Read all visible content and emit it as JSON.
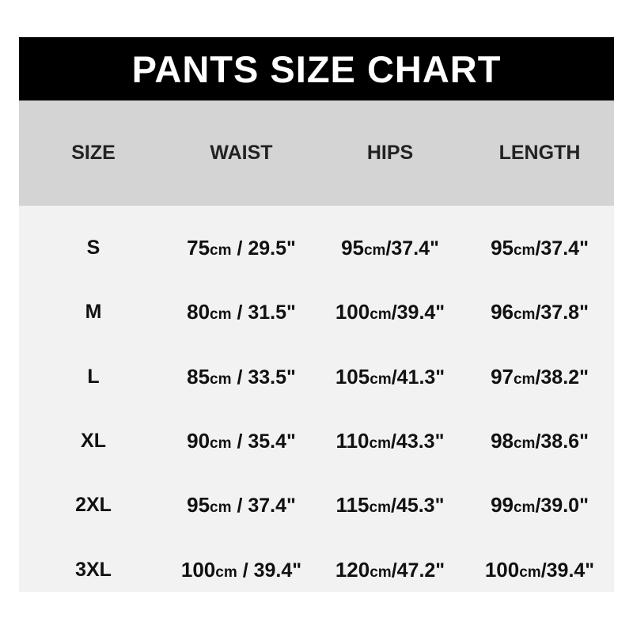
{
  "title": "PANTS SIZE CHART",
  "headers": [
    "SIZE",
    "WAIST",
    "HIPS",
    "LENGTH"
  ],
  "rows": [
    {
      "size": "S",
      "waist": {
        "num": "75",
        "unit": "cm",
        "rest": " / 29.5\""
      },
      "hips": {
        "num": "95",
        "unit": "cm",
        "rest": "/37.4\""
      },
      "length": {
        "num": "95",
        "unit": "cm",
        "rest": "/37.4\""
      }
    },
    {
      "size": "M",
      "waist": {
        "num": "80",
        "unit": "cm",
        "rest": " / 31.5\""
      },
      "hips": {
        "num": "100",
        "unit": "cm",
        "rest": "/39.4\""
      },
      "length": {
        "num": "96",
        "unit": "cm",
        "rest": "/37.8\""
      }
    },
    {
      "size": "L",
      "waist": {
        "num": "85",
        "unit": "cm",
        "rest": " / 33.5\""
      },
      "hips": {
        "num": "105",
        "unit": "cm",
        "rest": "/41.3\""
      },
      "length": {
        "num": "97",
        "unit": "cm",
        "rest": "/38.2\""
      }
    },
    {
      "size": "XL",
      "waist": {
        "num": "90",
        "unit": "cm",
        "rest": " / 35.4\""
      },
      "hips": {
        "num": "110",
        "unit": "cm",
        "rest": "/43.3\""
      },
      "length": {
        "num": "98",
        "unit": "cm",
        "rest": "/38.6\""
      }
    },
    {
      "size": "2XL",
      "waist": {
        "num": "95",
        "unit": "cm",
        "rest": " / 37.4\""
      },
      "hips": {
        "num": "115",
        "unit": "cm",
        "rest": "/45.3\""
      },
      "length": {
        "num": "99",
        "unit": "cm",
        "rest": "/39.0\""
      }
    },
    {
      "size": "3XL",
      "waist": {
        "num": "100",
        "unit": "cm",
        "rest": " / 39.4\""
      },
      "hips": {
        "num": "120",
        "unit": "cm",
        "rest": "/47.2\""
      },
      "length": {
        "num": "100",
        "unit": "cm",
        "rest": "/39.4\""
      }
    }
  ]
}
